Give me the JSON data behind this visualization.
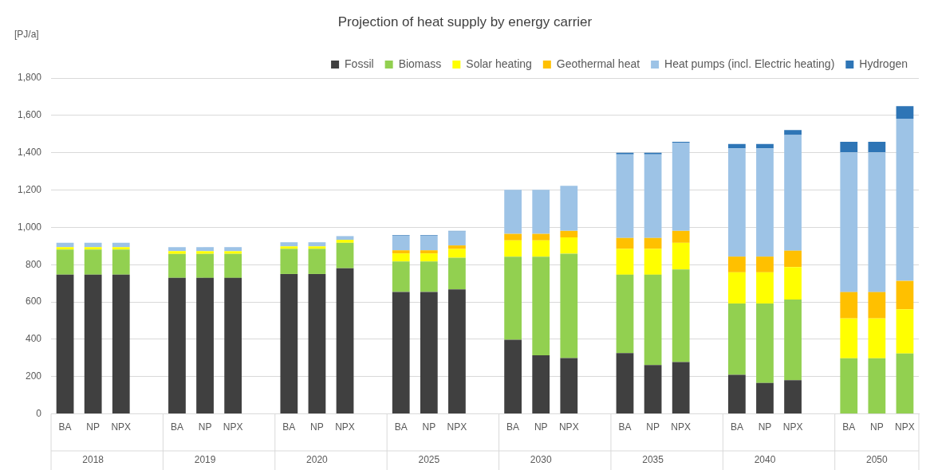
{
  "chart_data": {
    "type": "bar",
    "stacked": true,
    "title": "Projection of heat supply by energy carrier",
    "ylabel": "[PJ/a]",
    "categories": [
      "BA",
      "NP",
      "NPX",
      null,
      "BA",
      "NP",
      "NPX",
      null,
      "BA",
      "NP",
      "NPX",
      null,
      "BA",
      "NP",
      "NPX",
      null,
      "BA",
      "NP",
      "NPX",
      null,
      "BA",
      "NP",
      "NPX",
      null,
      "BA",
      "NP",
      "NPX",
      null,
      "BA",
      "NP",
      "NPX"
    ],
    "series": [
      {
        "name": "Fossil",
        "color": "#404040",
        "values": [
          746,
          746,
          746,
          null,
          729,
          729,
          729,
          null,
          750,
          750,
          781,
          null,
          654,
          654,
          668,
          null,
          398,
          314,
          299,
          null,
          326,
          262,
          278,
          null,
          210,
          166,
          181,
          null,
          0,
          0,
          0
        ]
      },
      {
        "name": "Biomass",
        "color": "#92d050",
        "values": [
          135,
          135,
          135,
          null,
          129,
          129,
          129,
          null,
          135,
          135,
          136,
          null,
          163,
          163,
          169,
          null,
          445,
          529,
          560,
          null,
          420,
          484,
          496,
          null,
          382,
          426,
          432,
          null,
          298,
          298,
          324
        ]
      },
      {
        "name": "Solar heating",
        "color": "#ffff00",
        "values": [
          13,
          13,
          13,
          null,
          14,
          14,
          14,
          null,
          13,
          13,
          16,
          null,
          43,
          43,
          47,
          null,
          87,
          87,
          87,
          null,
          139,
          139,
          143,
          null,
          167,
          167,
          174,
          null,
          214,
          214,
          237
        ]
      },
      {
        "name": "Geothermal heat",
        "color": "#ffc000",
        "values": [
          0,
          0,
          0,
          null,
          0,
          0,
          0,
          null,
          0,
          0,
          0,
          null,
          17,
          17,
          19,
          null,
          35,
          35,
          35,
          null,
          58,
          58,
          64,
          null,
          84,
          84,
          88,
          null,
          141,
          141,
          152
        ]
      },
      {
        "name": "Heat pumps (incl. Electric heating)",
        "color": "#9dc3e6",
        "values": [
          23,
          23,
          23,
          null,
          22,
          22,
          22,
          null,
          22,
          22,
          20,
          null,
          78,
          78,
          75,
          null,
          236,
          236,
          242,
          null,
          448,
          448,
          471,
          null,
          580,
          580,
          620,
          null,
          749,
          749,
          869
        ]
      },
      {
        "name": "Hydrogen",
        "color": "#2e75b6",
        "values": [
          0,
          0,
          0,
          null,
          0,
          0,
          0,
          null,
          0,
          0,
          0,
          null,
          3,
          3,
          3,
          null,
          null,
          null,
          null,
          null,
          9,
          9,
          6,
          null,
          24,
          24,
          26,
          null,
          56,
          56,
          67
        ]
      }
    ],
    "ylim": [
      0,
      1800
    ],
    "yticks": [
      0,
      200,
      400,
      600,
      800,
      {
        "value": 1000,
        "label": "1,000"
      },
      {
        "value": 1200,
        "label": "1,200"
      },
      {
        "value": 1400,
        "label": "1,400"
      },
      {
        "value": 1600,
        "label": "1,600"
      },
      {
        "value": 1800,
        "label": "1,800"
      }
    ],
    "grid": "y",
    "legend": "top",
    "annotations": [
      "2018",
      "2019",
      "2020",
      "2025",
      "2030",
      "2035",
      "2040",
      "2050"
    ]
  }
}
